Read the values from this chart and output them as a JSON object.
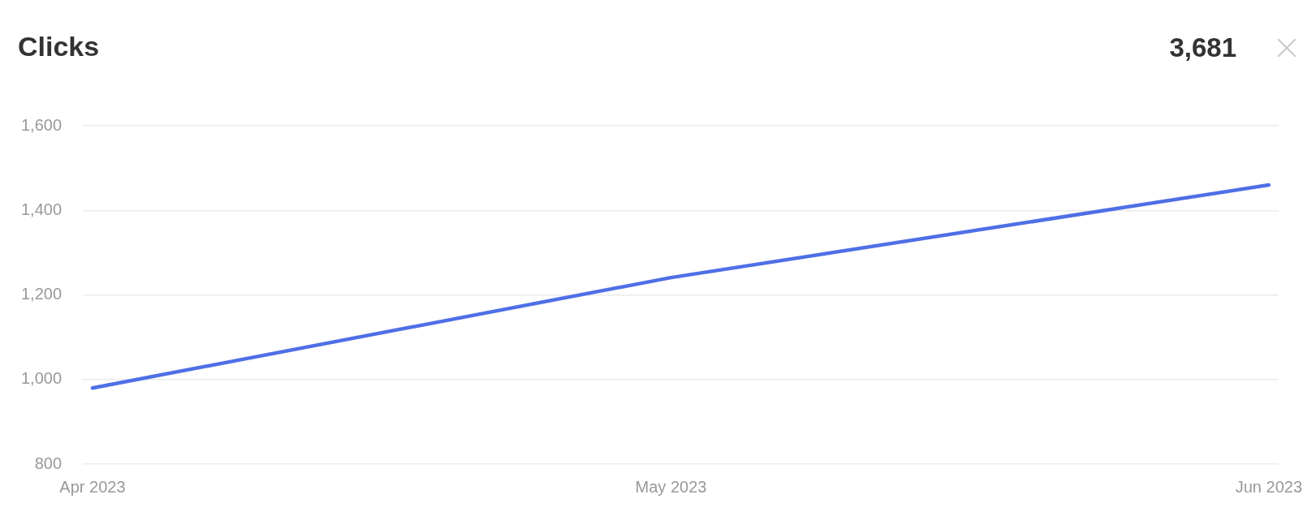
{
  "chart_data": {
    "type": "line",
    "title": "Clicks",
    "annotations": [
      "3,681"
    ],
    "x": [
      "2023-04-01",
      "2023-05-01",
      "2023-06-01"
    ],
    "values": [
      980,
      1241,
      1460
    ],
    "color": "#4f6fe6",
    "line_style": "solid",
    "xlim": [
      "2023-03-31T12:00",
      "2023-06-01T12:00"
    ],
    "xticks": [
      {
        "value": "2023-04-01",
        "label": "Apr 2023"
      },
      {
        "value": "2023-05-01",
        "label": "May 2023"
      },
      {
        "value": "2023-06-01",
        "label": "Jun 2023"
      }
    ],
    "ylim": [
      800,
      1600
    ],
    "yticks": [
      {
        "value": 800,
        "label": "800"
      },
      {
        "value": 1000,
        "label": "1,000"
      },
      {
        "value": 1200,
        "label": "1,200"
      },
      {
        "value": 1400,
        "label": "1,400"
      },
      {
        "value": 1600,
        "label": "1,600"
      }
    ],
    "grid": "y",
    "legend": false
  }
}
